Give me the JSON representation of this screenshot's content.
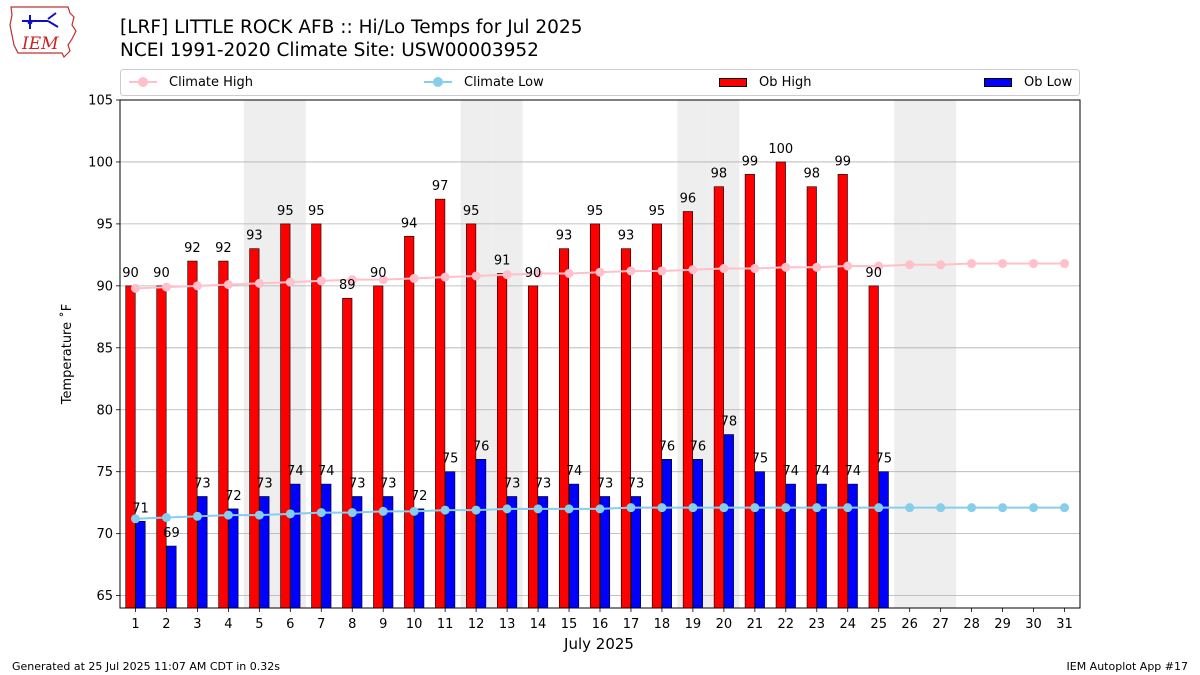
{
  "header": {
    "title_line1": "[LRF] LITTLE ROCK AFB :: Hi/Lo Temps for Jul 2025",
    "title_line2": "NCEI 1991-2020 Climate Site: USW00003952"
  },
  "logo": {
    "text": "IEM"
  },
  "legend": {
    "climate_high": "Climate High",
    "climate_low": "Climate Low",
    "ob_high": "Ob High",
    "ob_low": "Ob Low"
  },
  "colors": {
    "ob_high": "#ff0000",
    "ob_low": "#0000ff",
    "climate_high": "#ffc0cb",
    "climate_low": "#87ceeb",
    "weekend_shade": "#eeeeee",
    "grid": "#b0b0b0"
  },
  "footer": {
    "left": "Generated at 25 Jul 2025 11:07 AM CDT in 0.32s",
    "right": "IEM Autoplot App #17"
  },
  "chart_data": {
    "type": "bar",
    "title": "[LRF] LITTLE ROCK AFB :: Hi/Lo Temps for Jul 2025",
    "subtitle": "NCEI 1991-2020 Climate Site: USW00003952",
    "xlabel": "July 2025",
    "ylabel": "Temperature $^\\circ$F",
    "ylim": [
      64,
      105
    ],
    "yticks": [
      65,
      70,
      75,
      80,
      85,
      90,
      95,
      100,
      105
    ],
    "grid": true,
    "legend_position": "top",
    "x": [
      1,
      2,
      3,
      4,
      5,
      6,
      7,
      8,
      9,
      10,
      11,
      12,
      13,
      14,
      15,
      16,
      17,
      18,
      19,
      20,
      21,
      22,
      23,
      24,
      25,
      26,
      27,
      28,
      29,
      30,
      31
    ],
    "weekend_days": [
      5,
      6,
      12,
      13,
      19,
      20,
      26,
      27
    ],
    "series": [
      {
        "name": "Ob High",
        "type": "bar",
        "values": [
          90,
          90,
          92,
          92,
          93,
          95,
          95,
          89,
          90,
          94,
          97,
          95,
          91,
          90,
          93,
          95,
          93,
          95,
          96,
          98,
          99,
          100,
          98,
          99,
          90,
          null,
          null,
          null,
          null,
          null,
          null
        ]
      },
      {
        "name": "Ob Low",
        "type": "bar",
        "values": [
          71,
          69,
          73,
          72,
          73,
          74,
          74,
          73,
          73,
          72,
          75,
          76,
          73,
          73,
          74,
          73,
          73,
          76,
          76,
          78,
          75,
          74,
          74,
          74,
          75,
          null,
          null,
          null,
          null,
          null,
          null
        ]
      },
      {
        "name": "Climate High",
        "type": "line",
        "values": [
          89.8,
          89.9,
          90.0,
          90.1,
          90.2,
          90.3,
          90.4,
          90.5,
          90.5,
          90.6,
          90.7,
          90.8,
          90.9,
          91.0,
          91.0,
          91.1,
          91.2,
          91.2,
          91.3,
          91.4,
          91.4,
          91.5,
          91.5,
          91.6,
          91.6,
          91.7,
          91.7,
          91.8,
          91.8,
          91.8,
          91.8
        ]
      },
      {
        "name": "Climate Low",
        "type": "line",
        "values": [
          71.2,
          71.3,
          71.4,
          71.5,
          71.5,
          71.6,
          71.7,
          71.7,
          71.8,
          71.8,
          71.9,
          71.9,
          72.0,
          72.0,
          72.0,
          72.0,
          72.1,
          72.1,
          72.1,
          72.1,
          72.1,
          72.1,
          72.1,
          72.1,
          72.1,
          72.1,
          72.1,
          72.1,
          72.1,
          72.1,
          72.1
        ]
      }
    ]
  }
}
